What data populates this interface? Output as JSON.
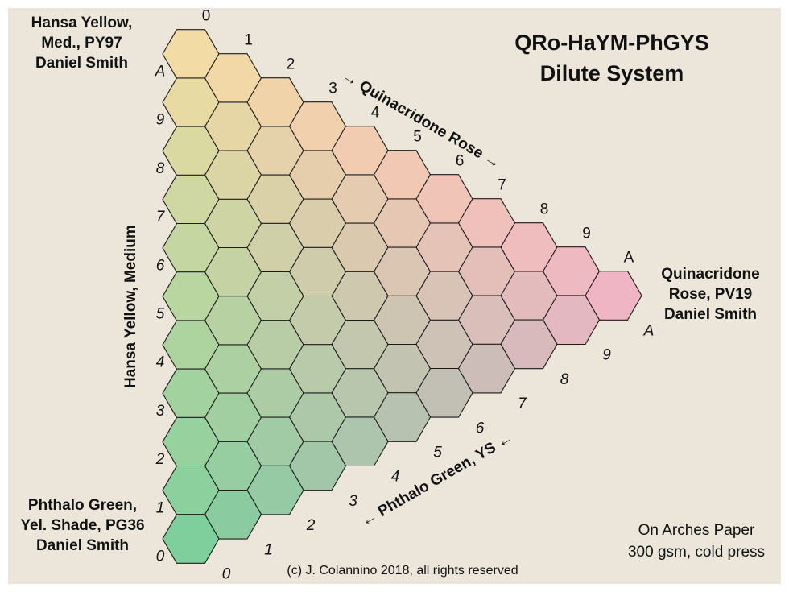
{
  "title": {
    "line1": "QRo-HaYM-PhGYS",
    "line2": "Dilute System"
  },
  "pigments": {
    "top": {
      "line1": "Hansa Yellow,",
      "line2": "Med., PY97",
      "line3": "Daniel Smith"
    },
    "bottom": {
      "line1": "Phthalo Green,",
      "line2": "Yel. Shade, PG36",
      "line3": "Daniel Smith"
    },
    "right": {
      "line1": "Quinacridone",
      "line2": "Rose, PV19",
      "line3": "Daniel Smith"
    }
  },
  "edges": {
    "left": "Hansa Yellow, Medium",
    "top": "→ Quinacridone Rose →",
    "bottom": "← Phthalo Green, YS ←"
  },
  "scale": [
    "0",
    "1",
    "2",
    "3",
    "4",
    "5",
    "6",
    "7",
    "8",
    "9",
    "A"
  ],
  "paper": {
    "line1": "On Arches Paper",
    "line2": "300 gsm, cold press"
  },
  "copyright": "(c) J. Colannino 2018, all rights reserved",
  "colors": {
    "background": "#ebe6d9",
    "yellow_corner": "#f2dba4",
    "rose_corner": "#efb5c4",
    "green_corner": "#7fcf9c",
    "hex_stroke": "#1a1a1a"
  }
}
